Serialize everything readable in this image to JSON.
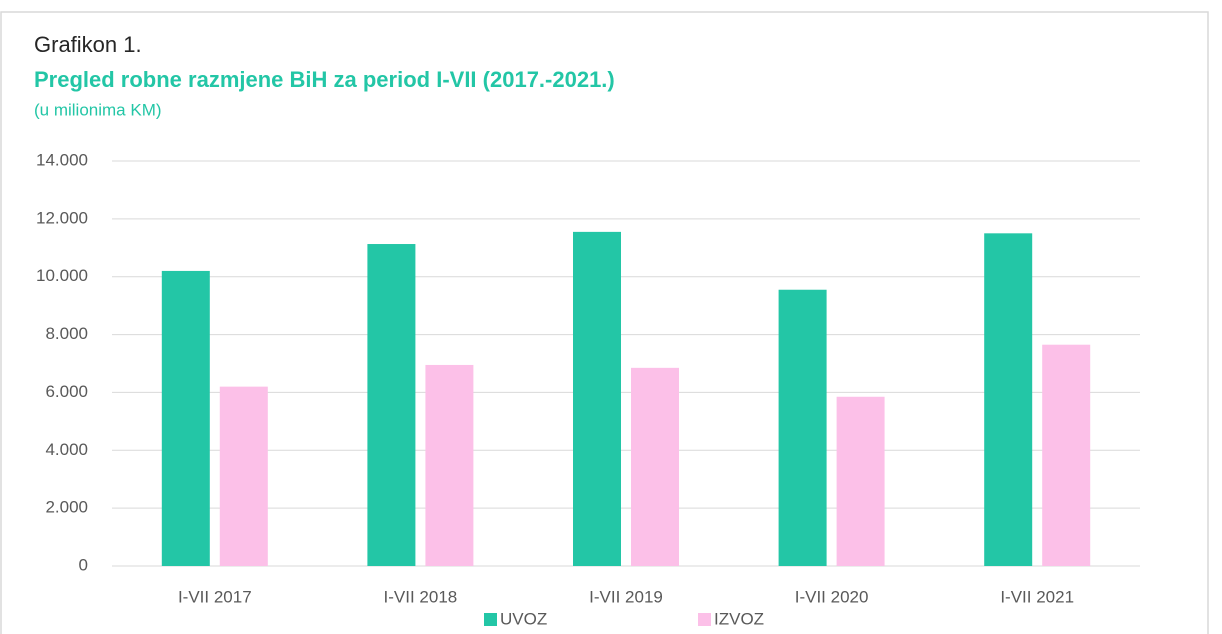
{
  "chart_data": {
    "type": "bar",
    "label": "Grafikon 1.",
    "title": "Pregled robne razmjene BiH za period I-VII (2017.-2021.)",
    "subtitle": "(u milionima KM)",
    "categories": [
      "I-VII 2017",
      "I-VII 2018",
      "I-VII 2019",
      "I-VII 2020",
      "I-VII 2021"
    ],
    "series": [
      {
        "name": "UVOZ",
        "color": "#23c6a6",
        "values": [
          10200,
          11130,
          11550,
          9550,
          11500
        ]
      },
      {
        "name": "IZVOZ",
        "color": "#fcc0e8",
        "values": [
          6200,
          6950,
          6850,
          5850,
          7650
        ]
      }
    ],
    "ylim": [
      0,
      14000
    ],
    "yticks": [
      0,
      {
        "value": 2000,
        "label": "2.000"
      },
      {
        "value": 4000,
        "label": "4.000"
      },
      {
        "value": 6000,
        "label": "6.000"
      },
      {
        "value": 8000,
        "label": "8.000"
      },
      {
        "value": 10000,
        "label": "10.000"
      },
      {
        "value": 12000,
        "label": "12.000"
      },
      {
        "value": 14000,
        "label": "14.000"
      }
    ],
    "grid": true
  }
}
